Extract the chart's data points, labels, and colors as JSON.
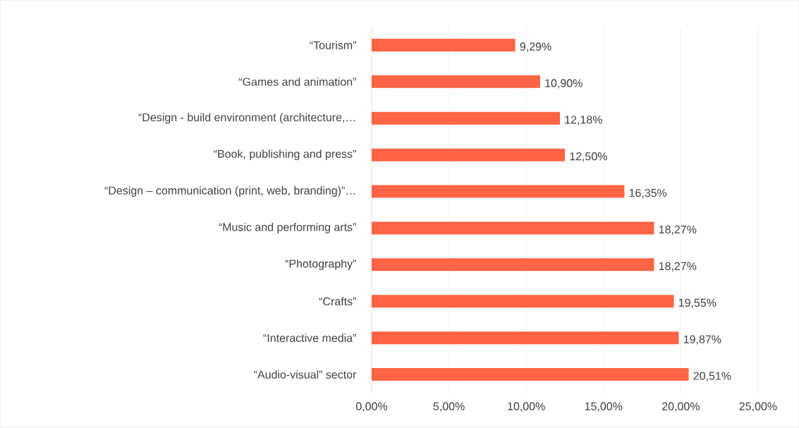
{
  "chart_data": {
    "type": "bar",
    "orientation": "horizontal",
    "color": "#ff6445",
    "categories": [
      "“Tourism”",
      "“Games and animation”",
      "“Design - build environment (architecture,…",
      "“Book, publishing and press”",
      "“Design – communication (print, web, branding)”…",
      "“Music and performing arts”",
      "“Photography”",
      "“Crafts”",
      "“Interactive media”",
      "“Audio-visual” sector"
    ],
    "values": [
      9.29,
      10.9,
      12.18,
      12.5,
      16.35,
      18.27,
      18.27,
      19.55,
      19.87,
      20.51
    ],
    "value_labels": [
      "9,29%",
      "10,90%",
      "12,18%",
      "12,50%",
      "16,35%",
      "18,27%",
      "18,27%",
      "19,55%",
      "19,87%",
      "20,51%"
    ],
    "xlim": [
      0,
      25
    ],
    "xticks": [
      {
        "value": 0,
        "label": "0,00%"
      },
      {
        "value": 5,
        "label": "5,00%"
      },
      {
        "value": 10,
        "label": "10,00%"
      },
      {
        "value": 15,
        "label": "15,00%"
      },
      {
        "value": 20,
        "label": "20,00%"
      },
      {
        "value": 25,
        "label": "25,00%"
      }
    ],
    "grid": "x"
  }
}
